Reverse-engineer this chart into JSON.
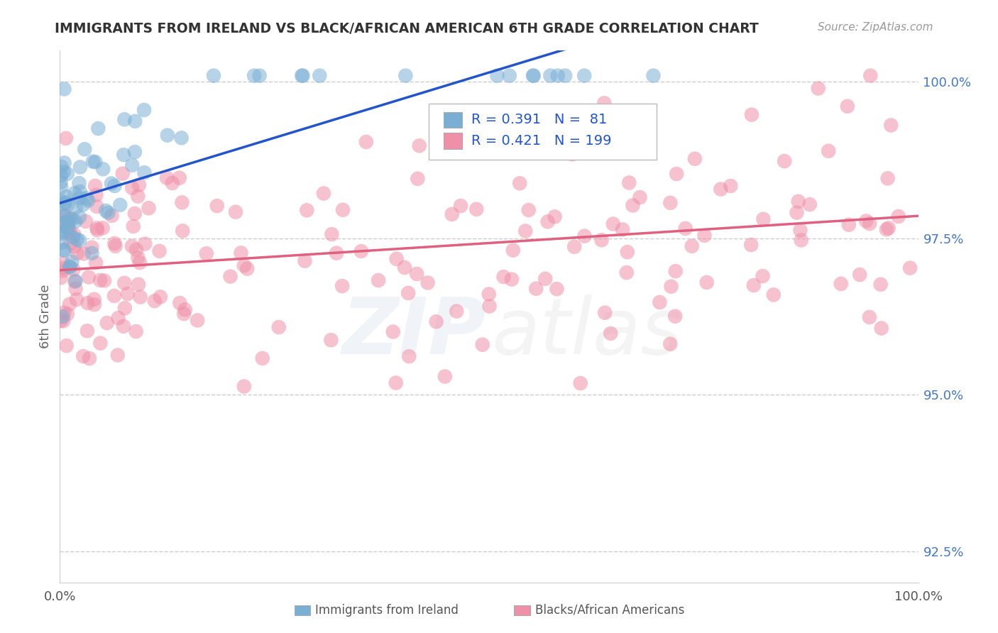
{
  "title": "IMMIGRANTS FROM IRELAND VS BLACK/AFRICAN AMERICAN 6TH GRADE CORRELATION CHART",
  "source": "Source: ZipAtlas.com",
  "ylabel": "6th Grade",
  "ylabel_right_labels": [
    "100.0%",
    "97.5%",
    "95.0%",
    "92.5%"
  ],
  "ylabel_right_values": [
    1.0,
    0.975,
    0.95,
    0.925
  ],
  "legend_entries": [
    {
      "label": "Immigrants from Ireland",
      "color": "#a8c4e0",
      "R": 0.391,
      "N": 81
    },
    {
      "label": "Blacks/African Americans",
      "color": "#f4b8c8",
      "R": 0.421,
      "N": 199
    }
  ],
  "blue_color": "#7aafd4",
  "pink_color": "#f090a8",
  "blue_line_color": "#2255cc",
  "pink_line_color": "#e06080",
  "legend_R_N_color": "#2255cc",
  "background_color": "#ffffff",
  "grid_color": "#cccccc",
  "title_color": "#333333",
  "ymin": 0.92,
  "ymax": 1.005,
  "xmin": 0.0,
  "xmax": 1.0
}
